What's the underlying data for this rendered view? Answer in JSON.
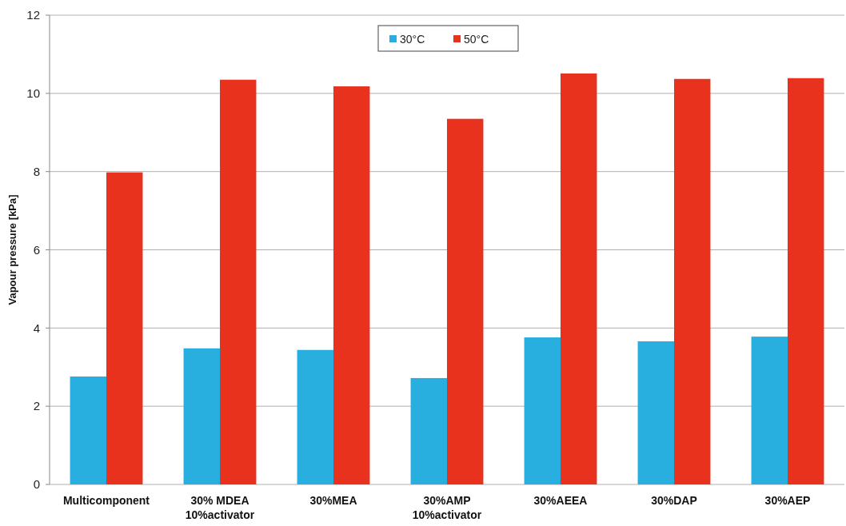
{
  "chart_data": {
    "type": "bar",
    "ylabel": "Vapour pressure [kPa]",
    "categories": [
      "Multicomponent",
      "30% MDEA 10%activator",
      "30%MEA",
      "30%AMP 10%activator",
      "30%AEEA",
      "30%DAP",
      "30%AEP"
    ],
    "series": [
      {
        "name": "30°C",
        "color": "#29aee0",
        "values": [
          2.76,
          3.48,
          3.44,
          2.72,
          3.76,
          3.66,
          3.78
        ]
      },
      {
        "name": "50°C",
        "color": "#e8321e",
        "values": [
          7.98,
          10.35,
          10.18,
          9.35,
          10.51,
          10.37,
          10.39
        ]
      }
    ],
    "ylim": [
      0,
      12
    ],
    "yticks": [
      0,
      2,
      4,
      6,
      8,
      10,
      12
    ],
    "grid": "y",
    "legend": "top"
  }
}
